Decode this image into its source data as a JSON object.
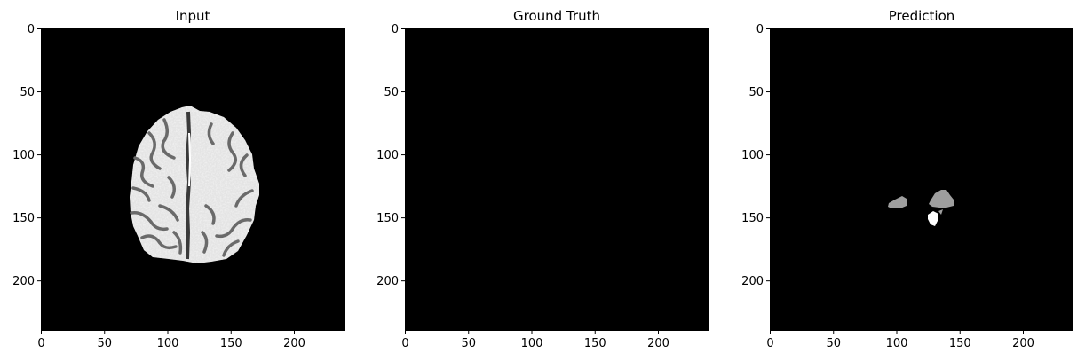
{
  "chart_data": [
    {
      "type": "heatmap",
      "title": "Input",
      "xlim": [
        0,
        240
      ],
      "ylim": [
        240,
        0
      ],
      "xticks": [
        0,
        50,
        100,
        150,
        200
      ],
      "yticks": [
        0,
        50,
        100,
        150,
        200
      ],
      "colormap": "gray",
      "content": "axial brain MRI slice"
    },
    {
      "type": "heatmap",
      "title": "Ground Truth",
      "xlim": [
        0,
        240
      ],
      "ylim": [
        240,
        0
      ],
      "xticks": [
        0,
        50,
        100,
        150,
        200
      ],
      "yticks": [
        0,
        50,
        100,
        150,
        200
      ],
      "colormap": "gray",
      "content": "empty mask"
    },
    {
      "type": "heatmap",
      "title": "Prediction",
      "xlim": [
        0,
        240
      ],
      "ylim": [
        240,
        0
      ],
      "xticks": [
        0,
        50,
        100,
        150,
        200
      ],
      "yticks": [
        0,
        50,
        100,
        150,
        200
      ],
      "colormap": "gray",
      "content": "predicted segmentation mask",
      "regions": [
        {
          "label": "gray",
          "cx": 105,
          "cy": 139,
          "level": 0.6
        },
        {
          "label": "gray",
          "cx": 138,
          "cy": 136,
          "level": 0.6
        },
        {
          "label": "white",
          "cx": 129,
          "cy": 151,
          "level": 1.0
        }
      ]
    }
  ]
}
